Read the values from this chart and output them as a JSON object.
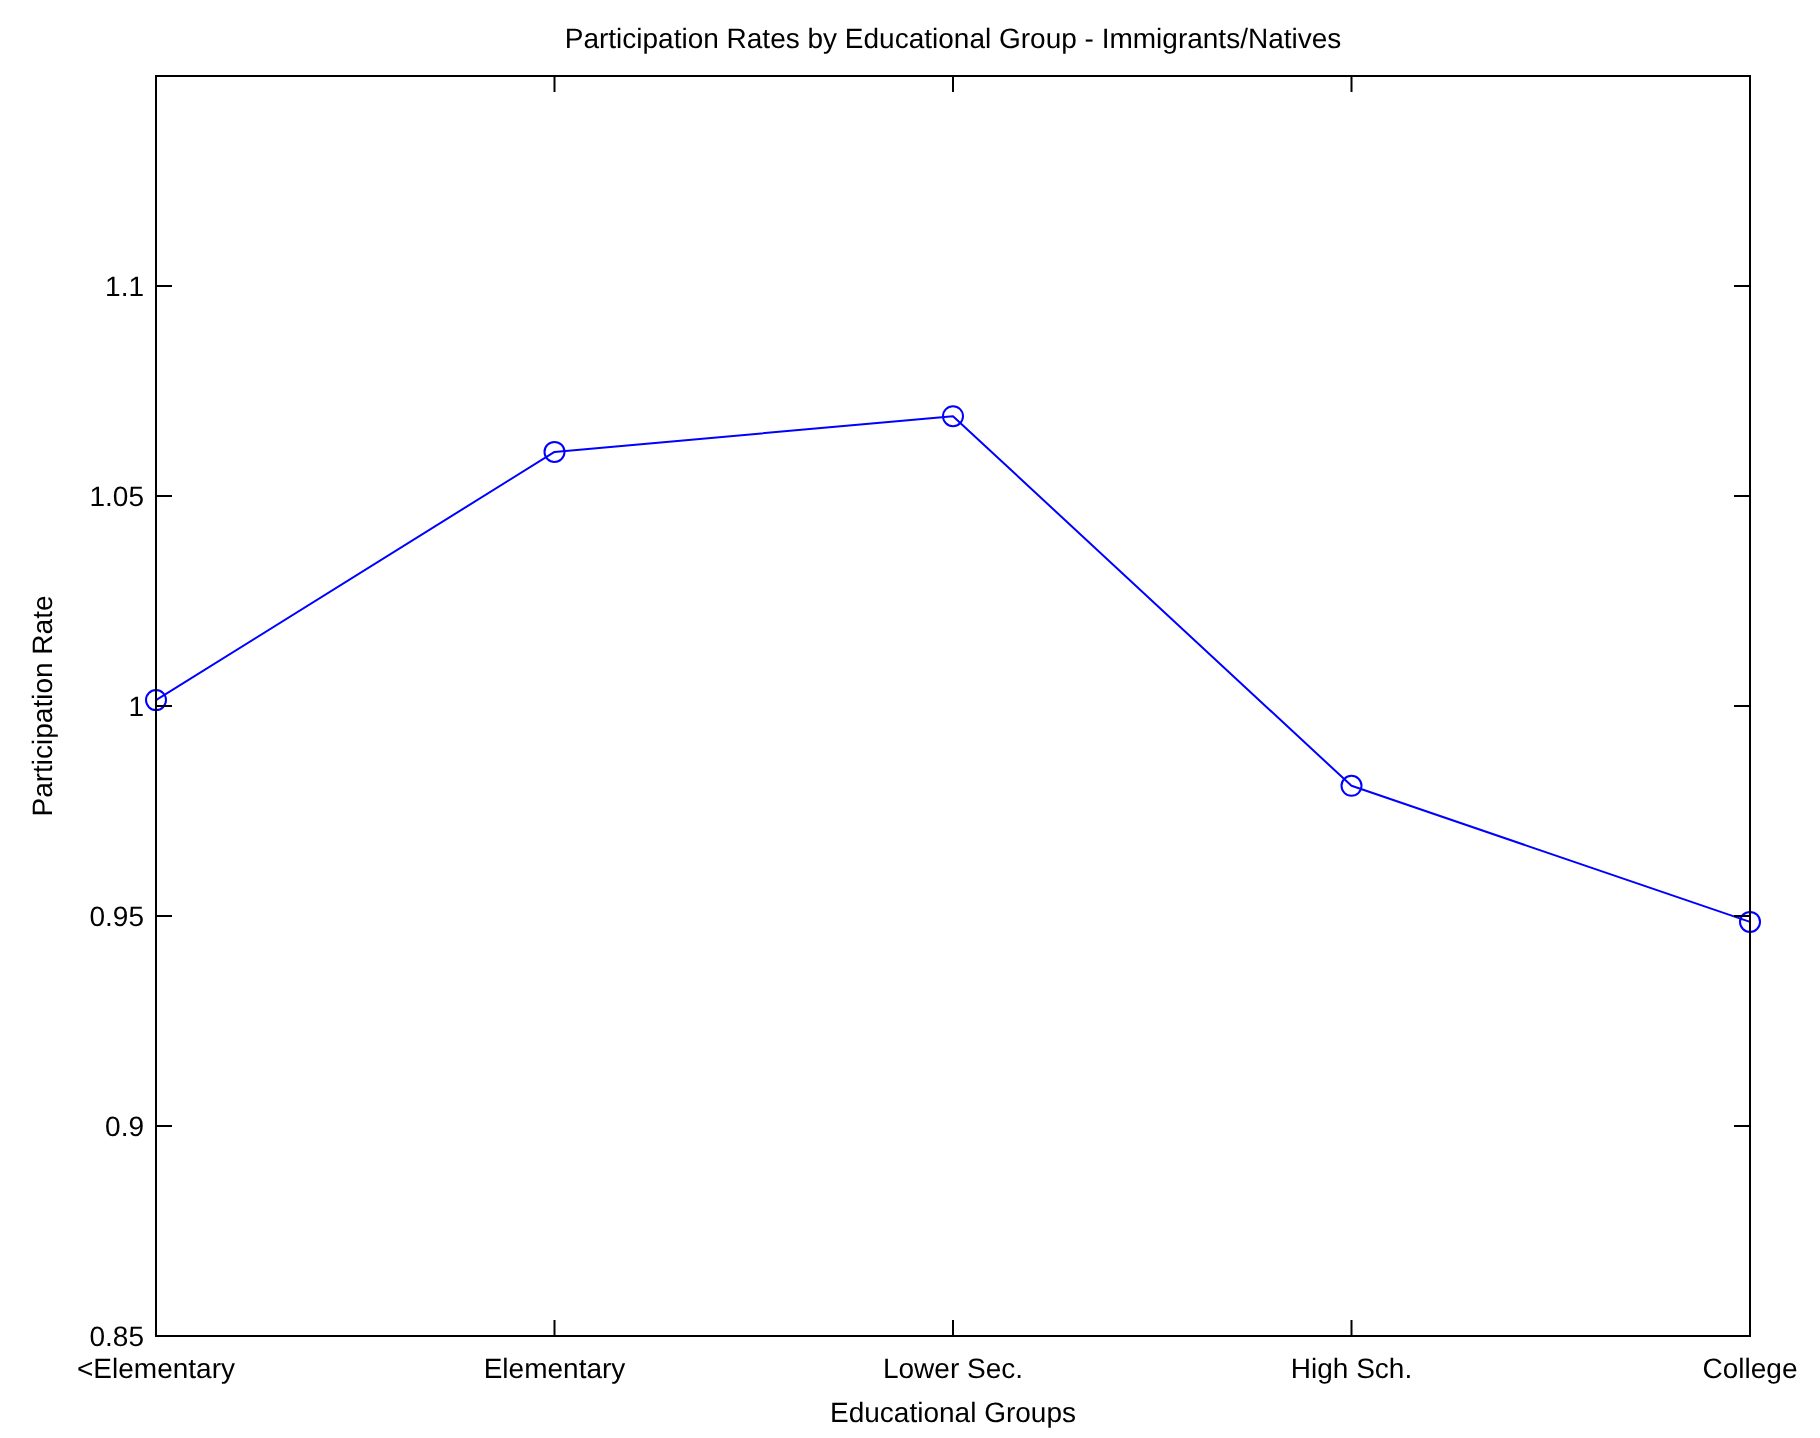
{
  "chart_data": {
    "type": "line",
    "title": "Participation Rates by Educational Group - Immigrants/Natives",
    "xlabel": "Educational Groups",
    "ylabel": "Participation Rate",
    "categories": [
      "<Elementary",
      "Elementary",
      "Lower Sec.",
      "High Sch.",
      "College"
    ],
    "series": [
      {
        "color": "#0000ff",
        "values": [
          1.0014,
          1.0605,
          1.069,
          0.981,
          0.9486
        ]
      }
    ],
    "ylim": [
      0.85,
      1.15
    ],
    "yticks": [
      0.85,
      0.9,
      0.95,
      1,
      1.05,
      1.1
    ],
    "grid": false,
    "marker": "circle",
    "line_style": "solid"
  }
}
